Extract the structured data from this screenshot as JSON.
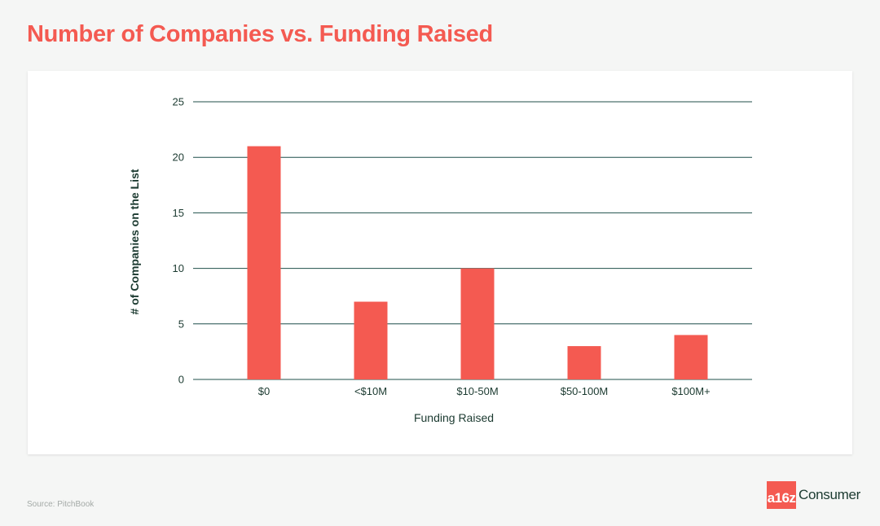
{
  "title": "Number of Companies vs. Funding Raised",
  "source": "Source: PitchBook",
  "logo": {
    "mark": "a16z",
    "word": "Consumer"
  },
  "colors": {
    "accent": "#f45a51",
    "bar": "#f45a51",
    "grid": "#1f4f4a",
    "text": "#1b3a30"
  },
  "chart_data": {
    "type": "bar",
    "categories": [
      "$0",
      "<$10M",
      "$10-50M",
      "$50-100M",
      "$100M+"
    ],
    "values": [
      21,
      7,
      10,
      3,
      4
    ],
    "xlabel": "Funding Raised",
    "ylabel": "# of Companies on the List",
    "ylim": [
      0,
      25
    ],
    "yticks": [
      0,
      5,
      10,
      15,
      20,
      25
    ],
    "grid": true,
    "legend": "none"
  }
}
